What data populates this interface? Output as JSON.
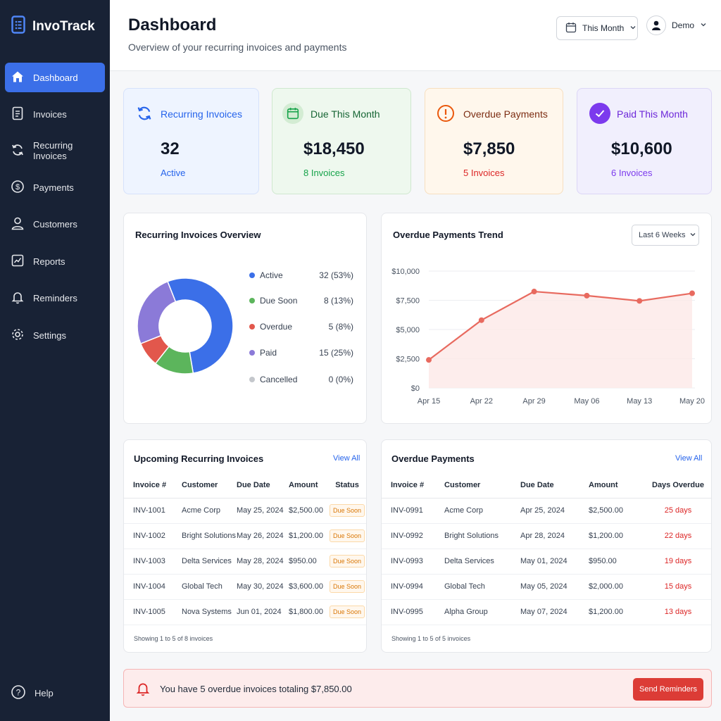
{
  "app": {
    "name": "InvoTrack"
  },
  "sidebar": {
    "items": [
      {
        "label": "Dashboard",
        "icon": "home-icon",
        "active": true
      },
      {
        "label": "Invoices",
        "icon": "document-icon"
      },
      {
        "label": "Recurring Invoices",
        "icon": "refresh-icon"
      },
      {
        "label": "Payments",
        "icon": "dollar-circle-icon"
      },
      {
        "label": "Customers",
        "icon": "user-icon"
      },
      {
        "label": "Reports",
        "icon": "report-icon"
      },
      {
        "label": "Reminders",
        "icon": "bell-icon"
      },
      {
        "label": "Settings",
        "icon": "gear-icon"
      }
    ],
    "help_label": "Help"
  },
  "header": {
    "title": "Dashboard",
    "subtitle": "Overview of your recurring invoices and payments",
    "period": "This Month",
    "user": "Demo"
  },
  "stats": {
    "recurring": {
      "label": "Recurring Invoices",
      "value": "32",
      "sub": "Active",
      "color": "#2563eb"
    },
    "due": {
      "label": "Due This Month",
      "value": "$18,450",
      "sub": "8 Invoices",
      "color": "#16a34a"
    },
    "overdue": {
      "label": "Overdue Payments",
      "value": "$7,850",
      "sub": "5 Invoices",
      "color": "#ea580c"
    },
    "paid": {
      "label": "Paid This Month",
      "value": "$10,600",
      "sub": "6 Invoices",
      "color": "#7c3aed"
    }
  },
  "overview": {
    "title": "Recurring Invoices Overview",
    "legend": [
      {
        "name": "Active",
        "count": "32",
        "pct": "(53%)",
        "color": "#3b6fe8"
      },
      {
        "name": "Due Soon",
        "count": "8",
        "pct": "(13%)",
        "color": "#5cb55c"
      },
      {
        "name": "Overdue",
        "count": "5",
        "pct": "(8%)",
        "color": "#e2574c"
      },
      {
        "name": "Paid",
        "count": "15",
        "pct": "(25%)",
        "color": "#8b7ad8"
      },
      {
        "name": "Cancelled",
        "count": "0",
        "pct": "(0%)",
        "color": "#c4c7cc"
      }
    ]
  },
  "trend": {
    "title": "Overdue Payments Trend",
    "range": "Last 6 Weeks"
  },
  "chart_data": [
    {
      "type": "pie",
      "categories": [
        "Active",
        "Due Soon",
        "Overdue",
        "Paid",
        "Cancelled"
      ],
      "values": [
        32,
        8,
        5,
        15,
        0
      ],
      "donut": true,
      "colors": [
        "#3b6fe8",
        "#5cb55c",
        "#e2574c",
        "#8b7ad8",
        "#c4c7cc"
      ]
    },
    {
      "type": "area",
      "categories": [
        "Apr 15",
        "Apr 22",
        "Apr 29",
        "May 06",
        "May 13",
        "May 20"
      ],
      "values": [
        2400,
        5800,
        8250,
        7900,
        7450,
        8100
      ],
      "ylim": [
        0,
        10000
      ],
      "yticks": [
        "$0",
        "$2,500",
        "$5,000",
        "$7,500",
        "$10,000"
      ],
      "line_color": "#e86a5f",
      "grid": true
    }
  ],
  "upcoming": {
    "title": "Upcoming Recurring Invoices",
    "view_all": "View All",
    "columns": [
      "Invoice #",
      "Customer",
      "Due Date",
      "Amount",
      "Status"
    ],
    "rows": [
      [
        "INV-1001",
        "Acme Corp",
        "May 25, 2024",
        "$2,500.00",
        "Due Soon"
      ],
      [
        "INV-1002",
        "Bright Solutions",
        "May 26, 2024",
        "$1,200.00",
        "Due Soon"
      ],
      [
        "INV-1003",
        "Delta Services",
        "May 28, 2024",
        "$950.00",
        "Due Soon"
      ],
      [
        "INV-1004",
        "Global Tech",
        "May 30, 2024",
        "$3,600.00",
        "Due Soon"
      ],
      [
        "INV-1005",
        "Nova Systems",
        "Jun 01, 2024",
        "$1,800.00",
        "Due Soon"
      ]
    ],
    "footer": "Showing 1 to 5 of 8 invoices"
  },
  "overdue_table": {
    "title": "Overdue Payments",
    "view_all": "View All",
    "columns": [
      "Invoice #",
      "Customer",
      "Due Date",
      "Amount",
      "Days Overdue"
    ],
    "rows": [
      [
        "INV-0991",
        "Acme Corp",
        "Apr 25, 2024",
        "$2,500.00",
        "25 days"
      ],
      [
        "INV-0992",
        "Bright Solutions",
        "Apr 28, 2024",
        "$1,200.00",
        "22 days"
      ],
      [
        "INV-0993",
        "Delta Services",
        "May 01, 2024",
        "$950.00",
        "19 days"
      ],
      [
        "INV-0994",
        "Global Tech",
        "May 05, 2024",
        "$2,000.00",
        "15 days"
      ],
      [
        "INV-0995",
        "Alpha Group",
        "May 07, 2024",
        "$1,200.00",
        "13 days"
      ]
    ],
    "footer": "Showing 1 to 5 of 5 invoices"
  },
  "alert": {
    "text": "You have 5 overdue invoices totaling $7,850.00",
    "button": "Send Reminders"
  }
}
